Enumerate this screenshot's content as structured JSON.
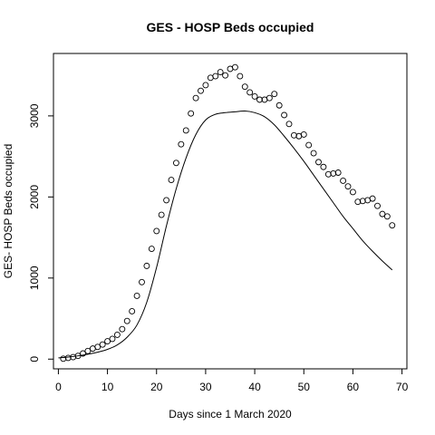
{
  "chart_data": {
    "type": "scatter",
    "title": "GES - HOSP Beds occupied",
    "xlabel": "Days since 1 March 2020",
    "ylabel": "GES- HOSP Beds occupied",
    "xlim": [
      -1,
      71
    ],
    "ylim": [
      -120,
      3770
    ],
    "x_ticks": [
      0,
      10,
      20,
      30,
      40,
      50,
      60,
      70
    ],
    "y_ticks": [
      0,
      1000,
      2000,
      3000
    ],
    "grid": false,
    "legend": "none",
    "series": [
      {
        "kind": "points",
        "x": [
          1,
          2,
          3,
          4,
          5,
          6,
          7,
          8,
          9,
          10,
          11,
          12,
          13,
          14,
          15,
          16,
          17,
          18,
          19,
          20,
          21,
          22,
          23,
          24,
          25,
          26,
          27,
          28,
          29,
          30,
          31,
          32,
          33,
          34,
          35,
          36,
          37,
          38,
          39,
          40,
          41,
          42,
          43,
          44,
          45,
          46,
          47,
          48,
          49,
          50,
          51,
          52,
          53,
          54,
          55,
          56,
          57,
          58,
          59,
          60,
          61,
          62,
          63,
          64,
          65,
          66,
          67,
          68
        ],
        "values": [
          5,
          15,
          25,
          40,
          70,
          100,
          130,
          150,
          180,
          220,
          250,
          300,
          370,
          470,
          590,
          780,
          950,
          1150,
          1360,
          1580,
          1780,
          1960,
          2210,
          2420,
          2650,
          2820,
          3030,
          3220,
          3310,
          3380,
          3470,
          3490,
          3540,
          3500,
          3580,
          3600,
          3490,
          3360,
          3290,
          3240,
          3200,
          3200,
          3220,
          3270,
          3130,
          3010,
          2900,
          2760,
          2750,
          2770,
          2640,
          2540,
          2430,
          2370,
          2280,
          2290,
          2300,
          2200,
          2130,
          2060,
          1940,
          1950,
          1960,
          1980,
          1890,
          1790,
          1760,
          1650
        ]
      },
      {
        "kind": "line",
        "x": [
          0,
          2,
          4,
          6,
          8,
          10,
          12,
          14,
          16,
          18,
          20,
          22,
          24,
          26,
          28,
          30,
          32,
          34,
          36,
          38,
          40,
          42,
          44,
          46,
          48,
          50,
          52,
          54,
          56,
          58,
          60,
          62,
          64,
          66,
          68
        ],
        "values": [
          15,
          25,
          40,
          60,
          85,
          120,
          175,
          270,
          420,
          700,
          1130,
          1640,
          2100,
          2480,
          2770,
          2950,
          3020,
          3040,
          3050,
          3060,
          3040,
          2990,
          2890,
          2750,
          2600,
          2440,
          2270,
          2100,
          1930,
          1760,
          1610,
          1460,
          1330,
          1210,
          1100
        ]
      }
    ]
  }
}
